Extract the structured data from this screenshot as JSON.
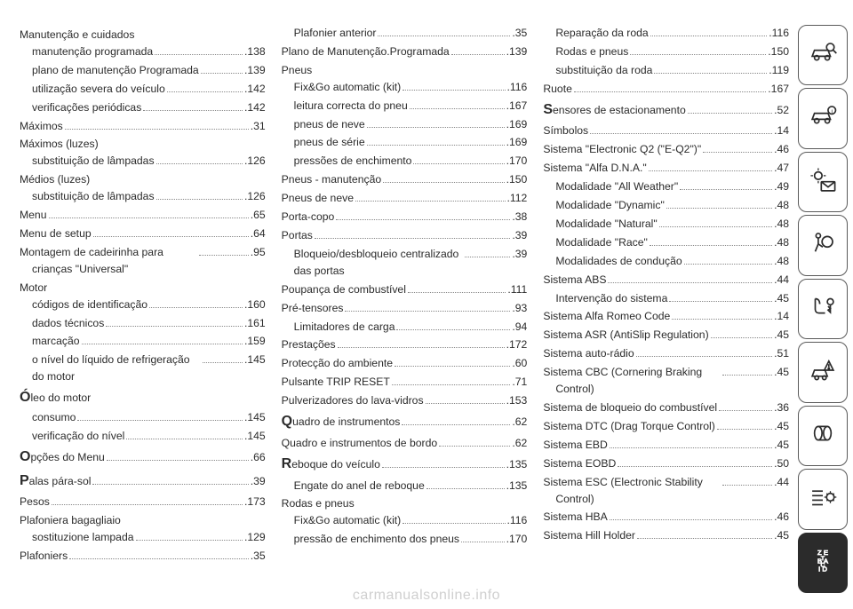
{
  "watermark": "carmanualsonline.info",
  "columns": [
    [
      {
        "type": "group",
        "label": "Manutenção e cuidados"
      },
      {
        "type": "sub",
        "label": "manutenção programada",
        "page": ".138"
      },
      {
        "type": "sub",
        "label": "plano de manutenção Programada",
        "page": ".139",
        "wrap": true
      },
      {
        "type": "sub",
        "label": "utilização severa do veículo",
        "page": ".142"
      },
      {
        "type": "sub",
        "label": "verificações periódicas",
        "page": ".142"
      },
      {
        "type": "entry",
        "label": "Máximos",
        "page": ".31"
      },
      {
        "type": "group",
        "label": "Máximos (luzes)"
      },
      {
        "type": "sub",
        "label": "substituição de lâmpadas",
        "page": ".126"
      },
      {
        "type": "group",
        "label": "Médios (luzes)"
      },
      {
        "type": "sub",
        "label": "substituição de lâmpadas",
        "page": ".126"
      },
      {
        "type": "entry",
        "label": "Menu",
        "page": ".65"
      },
      {
        "type": "entry",
        "label": "Menu de setup",
        "page": ".64"
      },
      {
        "type": "entry",
        "label": "Montagem de cadeirinha para crianças \"Universal\"",
        "page": ".95",
        "wrap": true,
        "indentWrap": true
      },
      {
        "type": "group",
        "label": "Motor"
      },
      {
        "type": "sub",
        "label": "códigos de identificação",
        "page": ".160"
      },
      {
        "type": "sub",
        "label": "dados técnicos",
        "page": ".161"
      },
      {
        "type": "sub",
        "label": "marcação",
        "page": ".159"
      },
      {
        "type": "sub",
        "label": "o nível do líquido de refrigeração do motor",
        "page": ".145",
        "wrap": true
      },
      {
        "type": "group",
        "label": "Óleo do motor",
        "initial": "Ó"
      },
      {
        "type": "sub",
        "label": "consumo",
        "page": ".145"
      },
      {
        "type": "sub",
        "label": "verificação do nível",
        "page": ".145"
      },
      {
        "type": "entry",
        "label": "Opções do Menu",
        "page": ".66",
        "initial": "O"
      },
      {
        "type": "entry",
        "label": "Palas pára-sol",
        "page": ".39",
        "initial": "P"
      },
      {
        "type": "entry",
        "label": "Pesos",
        "page": ".173"
      },
      {
        "type": "group",
        "label": "Plafoniera bagagliaio"
      },
      {
        "type": "sub",
        "label": "sostituzione lampada",
        "page": ".129"
      },
      {
        "type": "entry",
        "label": "Plafoniers",
        "page": ".35"
      }
    ],
    [
      {
        "type": "sub",
        "label": "Plafonier anterior",
        "page": ".35"
      },
      {
        "type": "entry",
        "label": "Plano de Manutenção.Programada",
        "page": ".139"
      },
      {
        "type": "group",
        "label": "Pneus"
      },
      {
        "type": "sub",
        "label": "Fix&Go automatic (kit)",
        "page": ".116"
      },
      {
        "type": "sub",
        "label": "leitura correcta do pneu",
        "page": ".167"
      },
      {
        "type": "sub",
        "label": "pneus de neve",
        "page": ".169"
      },
      {
        "type": "sub",
        "label": "pneus de série",
        "page": ".169"
      },
      {
        "type": "sub",
        "label": "pressões de enchimento",
        "page": ".170"
      },
      {
        "type": "entry",
        "label": "Pneus - manutenção",
        "page": ".150"
      },
      {
        "type": "entry",
        "label": "Pneus de neve",
        "page": ".112"
      },
      {
        "type": "entry",
        "label": "Porta-copo",
        "page": ".38"
      },
      {
        "type": "entry",
        "label": "Portas",
        "page": ".39"
      },
      {
        "type": "sub",
        "label": "Bloqueio/desbloqueio centralizado das portas",
        "page": ".39",
        "wrap": true
      },
      {
        "type": "entry",
        "label": "Poupança de combustível",
        "page": ".111"
      },
      {
        "type": "entry",
        "label": "Pré-tensores",
        "page": ".93"
      },
      {
        "type": "sub",
        "label": "Limitadores de carga",
        "page": ".94"
      },
      {
        "type": "entry",
        "label": "Prestações",
        "page": ".172"
      },
      {
        "type": "entry",
        "label": "Protecção do ambiente",
        "page": ".60"
      },
      {
        "type": "entry",
        "label": "Pulsante TRIP RESET",
        "page": ".71"
      },
      {
        "type": "entry",
        "label": "Pulverizadores do lava-vidros",
        "page": ".153"
      },
      {
        "type": "entry",
        "label": "Quadro de instrumentos",
        "page": ".62",
        "initial": "Q"
      },
      {
        "type": "entry",
        "label": "Quadro e instrumentos de bordo",
        "page": ".62"
      },
      {
        "type": "entry",
        "label": "Reboque do veículo",
        "page": ".135",
        "initial": "R"
      },
      {
        "type": "sub",
        "label": "Engate do anel de reboque",
        "page": ".135"
      },
      {
        "type": "group",
        "label": "Rodas e pneus"
      },
      {
        "type": "sub",
        "label": "Fix&Go automatic (kit)",
        "page": ".116"
      },
      {
        "type": "sub",
        "label": "pressão de enchimento dos pneus",
        "page": ".170",
        "wrap": true
      }
    ],
    [
      {
        "type": "sub",
        "label": "Reparação da roda",
        "page": ".116"
      },
      {
        "type": "sub",
        "label": "Rodas e pneus",
        "page": ".150"
      },
      {
        "type": "sub",
        "label": "substituição da roda",
        "page": ".119"
      },
      {
        "type": "entry",
        "label": "Ruote",
        "page": ".167"
      },
      {
        "type": "entry",
        "label": "Sensores de estacionamento",
        "page": ".52",
        "initial": "S"
      },
      {
        "type": "entry",
        "label": "Símbolos",
        "page": ".14"
      },
      {
        "type": "entry",
        "label": "Sistema \"Electronic Q2 (\"E-Q2\")\"",
        "page": ".46"
      },
      {
        "type": "entry",
        "label": "Sistema \"Alfa D.N.A.\"",
        "page": ".47"
      },
      {
        "type": "sub",
        "label": "Modalidade \"All Weather\"",
        "page": ".49"
      },
      {
        "type": "sub",
        "label": "Modalidade \"Dynamic\"",
        "page": ".48"
      },
      {
        "type": "sub",
        "label": "Modalidade \"Natural\"",
        "page": ".48"
      },
      {
        "type": "sub",
        "label": "Modalidade \"Race\"",
        "page": ".48"
      },
      {
        "type": "sub",
        "label": "Modalidades de condução",
        "page": ".48"
      },
      {
        "type": "entry",
        "label": "Sistema ABS",
        "page": ".44"
      },
      {
        "type": "sub",
        "label": "Intervenção do sistema",
        "page": ".45"
      },
      {
        "type": "entry",
        "label": "Sistema Alfa Romeo Code",
        "page": ".14"
      },
      {
        "type": "entry",
        "label": "Sistema ASR (AntiSlip Regulation)",
        "page": ".45"
      },
      {
        "type": "entry",
        "label": "Sistema auto-rádio",
        "page": ".51"
      },
      {
        "type": "entry",
        "label": "Sistema CBC (Cornering Braking Control)",
        "page": ".45",
        "wrap": true,
        "indentWrap": true
      },
      {
        "type": "entry",
        "label": "Sistema de bloqueio do combustível",
        "page": ".36",
        "wrap": true,
        "indentWrap": true
      },
      {
        "type": "entry",
        "label": "Sistema DTC (Drag Torque Control)",
        "page": ".45"
      },
      {
        "type": "entry",
        "label": "Sistema EBD",
        "page": ".45"
      },
      {
        "type": "entry",
        "label": "Sistema EOBD",
        "page": ".50"
      },
      {
        "type": "entry",
        "label": "Sistema ESC (Electronic Stability Control)",
        "page": ".44",
        "wrap": true,
        "indentWrap": true
      },
      {
        "type": "entry",
        "label": "Sistema HBA",
        "page": ".46"
      },
      {
        "type": "entry",
        "label": "Sistema Hill Holder",
        "page": ".45"
      }
    ]
  ],
  "icons": [
    "car-search",
    "car-info",
    "sun-mail",
    "airbag",
    "seat-key",
    "crash-warn",
    "wheels",
    "list-gear",
    "zebad"
  ],
  "activeIconIndex": 8,
  "colors": {
    "text": "#2b2b2b",
    "border": "#5a5a5a",
    "watermark": "#cfcfcf",
    "activeBg": "#2b2b2b"
  }
}
